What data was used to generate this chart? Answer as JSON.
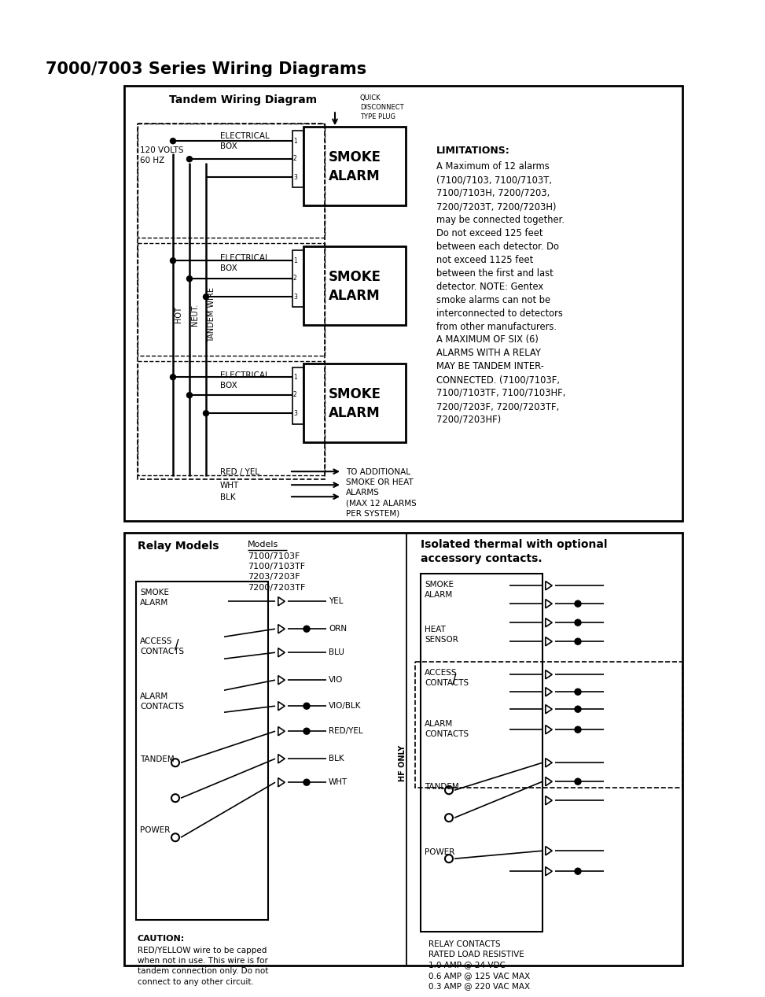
{
  "title": "7000/7003 Series Wiring Diagrams",
  "tandem_title": "Tandem Wiring Diagram",
  "quick_disconnect": "QUICK\nDISCONNECT\nTYPE PLUG",
  "volts_label": "120 VOLTS\n60 HZ",
  "elec_box": "ELECTRICAL\nBOX",
  "smoke_alarm": "SMOKE\nALARM",
  "limitations_title": "LIMITATIONS:",
  "limitations_text1": "A Maximum of 12 alarms\n(7100/7103, 7100/7103T,\n7100/7103H, 7200/7203,\n7200/7203T, 7200/7203H)\nmay be connected together.\nDo not exceed 125 feet\nbetween each detector. Do\nnot exceed 1125 feet\nbetween the first and last\ndetector. NOTE: Gentex\nsmoke alarms can not be\ninterconnected to detectors\nfrom other manufacturers.",
  "limitations_text2": "A MAXIMUM OF SIX (6)\nALARMS WITH A RELAY\nMAY BE TANDEM INTER-\nCONNECTED. (7100/7103F,\n7100/7103TF, 7100/7103HF,\n7200/7203F, 7200/7203TF,\n7200/7203HF)",
  "additional_label": "TO ADDITIONAL\nSMOKE OR HEAT\nALARMS\n(MAX 12 ALARMS\nPER SYSTEM)",
  "wire_labels": [
    "RED / YEL",
    "WHT",
    "BLK"
  ],
  "relay_title": "Relay Models",
  "models_underline": "Models",
  "models_list": "7100/7103F\n7100/7103TF\n7203/7203F\n7200/7203TF",
  "relay_left_labels": [
    "SMOKE\nALARM",
    "ACCESS\nCONTACTS",
    "ALARM\nCONTACTS",
    "TANDEM",
    "POWER"
  ],
  "relay_wire_colors": [
    "YEL",
    "ORN",
    "BLU",
    "VIO",
    "VIO/BLK",
    "RED/YEL",
    "BLK",
    "WHT"
  ],
  "relay_dots": [
    false,
    true,
    false,
    false,
    true,
    true,
    false,
    true
  ],
  "hf_only": "HF ONLY",
  "caution_title": "CAUTION:",
  "caution_text": "RED/YELLOW wire to be capped\nwhen not in use. This wire is for\ntandem connection only. Do not\nconnect to any other circuit.",
  "isolated_title": "Isolated thermal with optional\naccessory contacts.",
  "isolated_left_labels": [
    "SMOKE\nALARM",
    "HEAT\nSENSOR",
    "ACCESS\nCONTACTS",
    "ALARM\nCONTACTS",
    "TANDEM",
    "POWER"
  ],
  "relay_contacts": "RELAY CONTACTS\nRATED LOAD RESISTIVE\n1.0 AMP @ 24 VDC\n0.6 AMP @ 125 VAC MAX\n0.3 AMP @ 220 VAC MAX",
  "bg": "#ffffff",
  "fg": "#000000"
}
